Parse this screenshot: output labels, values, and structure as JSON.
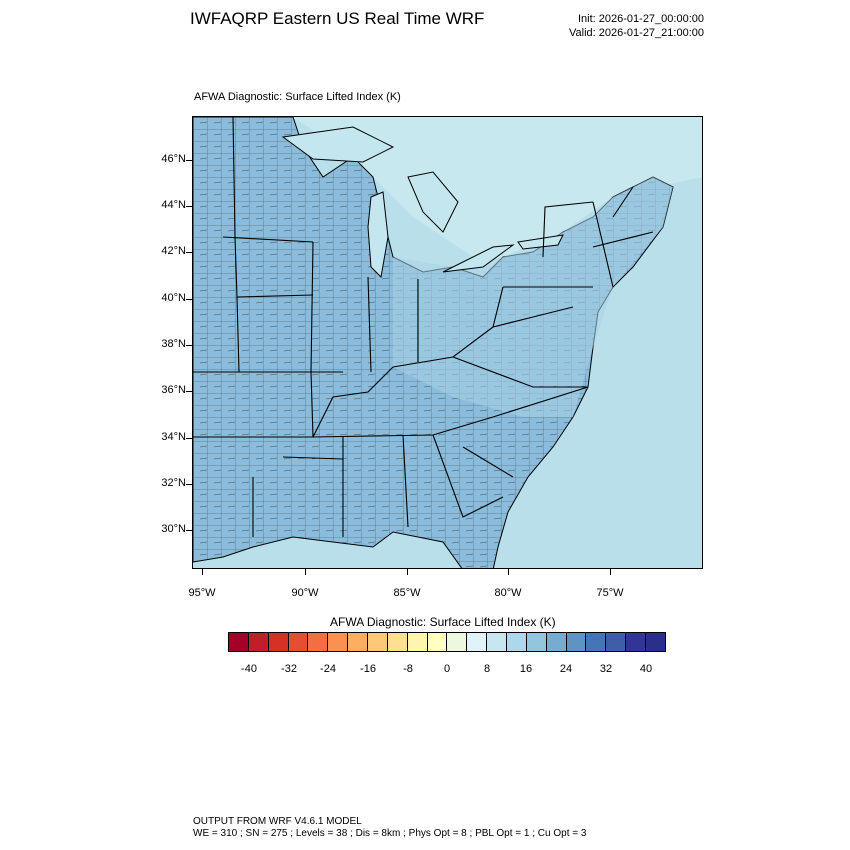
{
  "header": {
    "title": "IWFAQRP Eastern US Real Time WRF",
    "init": "Init: 2026-01-27_00:00:00",
    "valid": "Valid: 2026-01-27_21:00:00"
  },
  "map": {
    "subtitle": "AFWA Diagnostic: Surface Lifted Index   (K)",
    "field": "surface-lifted-index",
    "lat_labels": [
      "46°N",
      "44°N",
      "42°N",
      "40°N",
      "38°N",
      "36°N",
      "34°N",
      "32°N",
      "30°N"
    ],
    "lon_labels": [
      "95°W",
      "90°W",
      "85°W",
      "80°W",
      "75°W"
    ],
    "colors": {
      "land_shade": "#7fb3d6",
      "land_light": "#a8d2e4",
      "ocean": "#b6dce9",
      "lake": "#c4e6ef",
      "outline": "#000000"
    }
  },
  "colorbar": {
    "title": "AFWA Diagnostic: Surface Lifted Index  (K)",
    "labels": [
      "-40",
      "-32",
      "-24",
      "-16",
      "-8",
      "0",
      "8",
      "16",
      "24",
      "32",
      "40"
    ],
    "colors": [
      "#a50026",
      "#c21d2b",
      "#d73027",
      "#e54e35",
      "#f46d43",
      "#f99153",
      "#fdae61",
      "#fec877",
      "#fee090",
      "#fef5ae",
      "#ffffbf",
      "#edf8de",
      "#e0f3f8",
      "#c7e6f0",
      "#abd9e9",
      "#92c5de",
      "#74add1",
      "#5f93c2",
      "#4575b4",
      "#3e5ea8",
      "#313695",
      "#2a2f8a"
    ]
  },
  "footer": {
    "line1": "OUTPUT FROM WRF V4.6.1 MODEL",
    "line2": "WE = 310 ; SN = 275 ; Levels = 38 ; Dis = 8km ; Phys Opt = 8 ; PBL Opt = 1 ; Cu Opt = 3"
  }
}
